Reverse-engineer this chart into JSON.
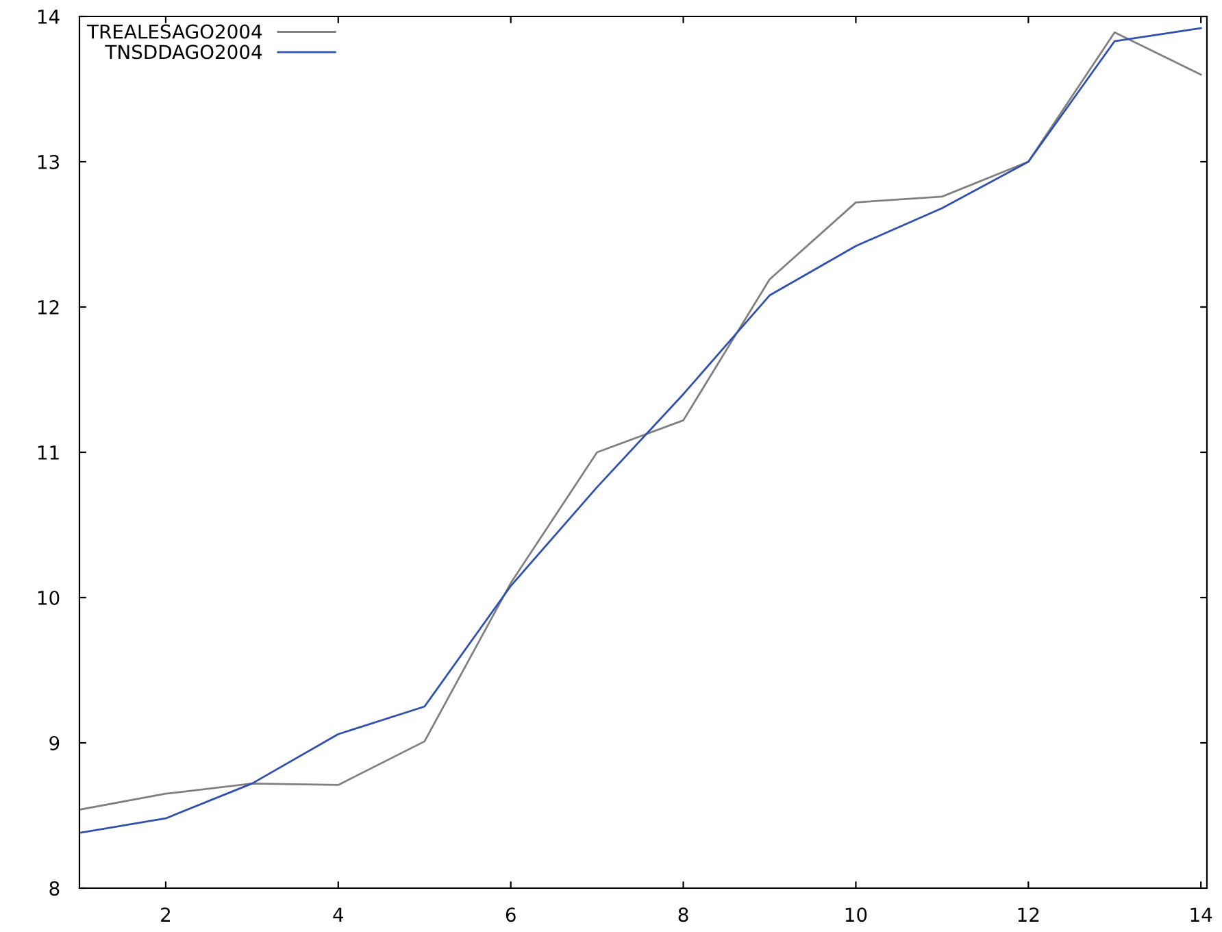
{
  "chart_data": {
    "type": "line",
    "x": [
      1,
      2,
      3,
      4,
      5,
      6,
      7,
      8,
      9,
      10,
      11,
      12,
      13,
      14
    ],
    "series": [
      {
        "name": "TREALESAGO2004",
        "color": "#808080",
        "values": [
          8.54,
          8.65,
          8.72,
          8.71,
          9.01,
          10.1,
          11.0,
          11.22,
          12.19,
          12.72,
          12.76,
          13.0,
          13.89,
          13.6
        ]
      },
      {
        "name": "TNSDDAGO2004",
        "color": "#3050b0",
        "values": [
          8.38,
          8.48,
          8.72,
          9.06,
          9.25,
          10.08,
          10.76,
          11.4,
          12.08,
          12.42,
          12.68,
          13.0,
          13.83,
          13.92
        ]
      }
    ],
    "xlim": [
      1,
      14.07
    ],
    "ylim": [
      8,
      14
    ],
    "xticks": [
      2,
      4,
      6,
      8,
      10,
      12,
      14
    ],
    "yticks": [
      8,
      9,
      10,
      11,
      12,
      13,
      14
    ],
    "grid": false,
    "legend": "top left",
    "marker": "none",
    "line_style": "solid"
  }
}
